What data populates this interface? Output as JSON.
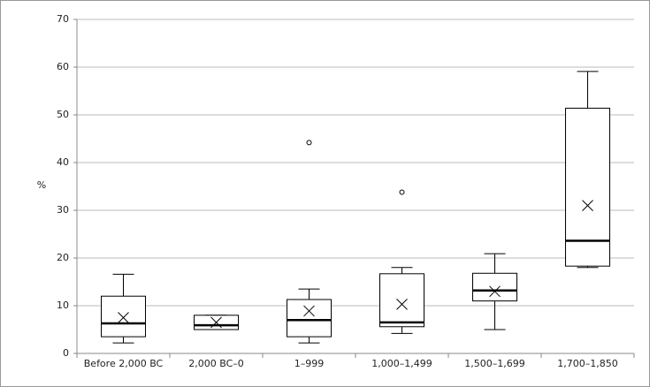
{
  "chart_data": {
    "type": "box",
    "y_label": "%",
    "categories": [
      "Before 2,000 BC",
      "2,000 BC–0",
      "1–999",
      "1,000–1,499",
      "1,500–1,699",
      "1,700–1,850"
    ],
    "min": [
      2.2,
      5,
      2.2,
      4.2,
      5,
      18
    ],
    "q1": [
      3.5,
      5,
      3.5,
      5.6,
      11,
      18.3
    ],
    "median": [
      6.3,
      5.9,
      7,
      6.5,
      13.2,
      23.6
    ],
    "q3": [
      12,
      8,
      11.3,
      16.7,
      16.8,
      51.4
    ],
    "max": [
      16.6,
      8,
      13.5,
      18,
      20.9,
      59.1
    ],
    "mean": [
      7.5,
      6.5,
      8.9,
      10.3,
      13,
      31
    ],
    "outliers": [
      [],
      [],
      [
        44.2
      ],
      [
        33.8
      ],
      [],
      []
    ],
    "color": "#000000",
    "ylim": [
      0,
      70
    ],
    "yticks": [
      0,
      10,
      20,
      30,
      40,
      50,
      60,
      70
    ],
    "grid": true
  }
}
